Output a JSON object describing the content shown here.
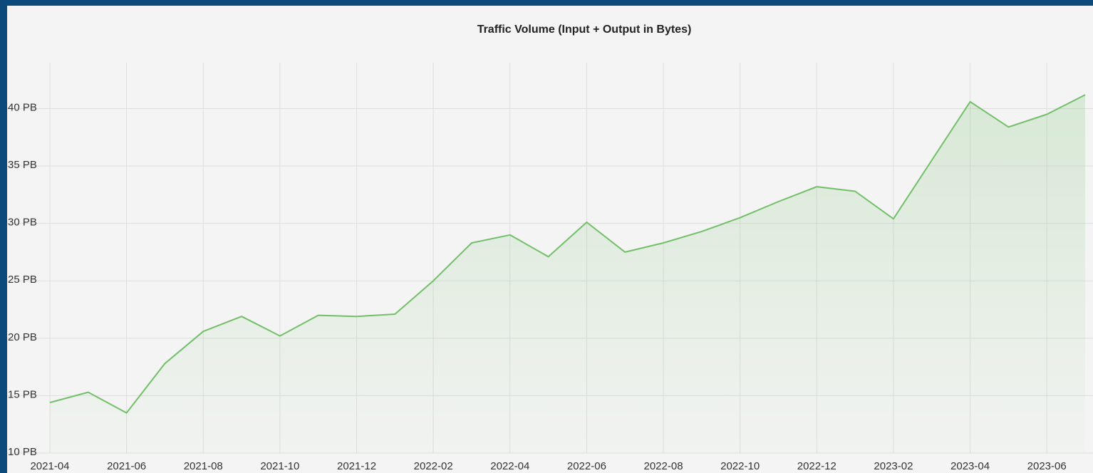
{
  "chart_data": {
    "type": "area",
    "title": "Traffic Volume (Input + Output in Bytes)",
    "x": [
      "2021-04",
      "2021-05",
      "2021-06",
      "2021-07",
      "2021-08",
      "2021-09",
      "2021-10",
      "2021-11",
      "2021-12",
      "2022-01",
      "2022-02",
      "2022-03",
      "2022-04",
      "2022-05",
      "2022-06",
      "2022-07",
      "2022-08",
      "2022-09",
      "2022-10",
      "2022-11",
      "2022-12",
      "2023-01",
      "2023-02",
      "2023-03",
      "2023-04",
      "2023-05",
      "2023-06",
      "2023-07"
    ],
    "values": [
      14.4,
      15.3,
      13.5,
      17.8,
      20.6,
      21.9,
      20.2,
      22.0,
      21.9,
      22.1,
      25.0,
      28.3,
      29.0,
      27.1,
      30.1,
      27.5,
      28.3,
      29.3,
      30.5,
      31.9,
      33.2,
      32.8,
      30.4,
      35.5,
      40.6,
      38.4,
      39.5,
      41.2
    ],
    "color": "#73bf69",
    "xticks": [
      "2021-04",
      "2021-06",
      "2021-08",
      "2021-10",
      "2021-12",
      "2022-02",
      "2022-04",
      "2022-06",
      "2022-08",
      "2022-10",
      "2022-12",
      "2023-02",
      "2023-04",
      "2023-06"
    ],
    "ylim": [
      10,
      44
    ],
    "yticks": [
      {
        "value": 10,
        "label": "10 PB"
      },
      {
        "value": 15,
        "label": "15 PB"
      },
      {
        "value": 20,
        "label": "20 PB"
      },
      {
        "value": 25,
        "label": "25 PB"
      },
      {
        "value": 30,
        "label": "30 PB"
      },
      {
        "value": 35,
        "label": "35 PB"
      },
      {
        "value": 40,
        "label": "40 PB"
      }
    ],
    "grid": true
  }
}
